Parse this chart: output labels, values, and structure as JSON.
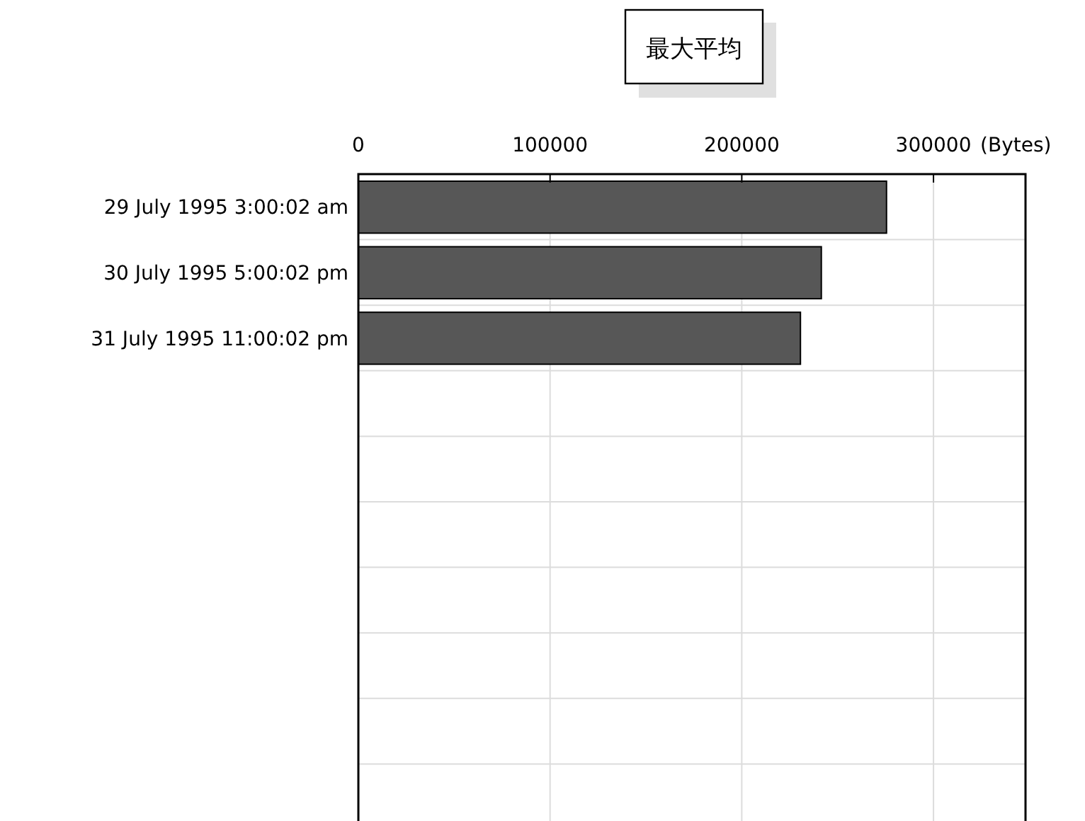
{
  "chart_data": {
    "type": "bar",
    "orientation": "horizontal",
    "title": "最大平均",
    "xlabel": "(Bytes)",
    "categories": [
      "29 July 1995 3:00:02 am",
      "30 July 1995 5:00:02 pm",
      "31 July 1995 11:00:02 pm",
      null,
      null,
      null,
      null,
      null,
      null,
      null
    ],
    "values": [
      275500,
      241500,
      230600,
      null,
      null,
      null,
      null,
      null,
      null,
      null
    ],
    "color": "#575757",
    "xlim": [
      0,
      348000
    ],
    "xticks": [
      0,
      100000,
      200000,
      300000
    ],
    "grid": true
  }
}
